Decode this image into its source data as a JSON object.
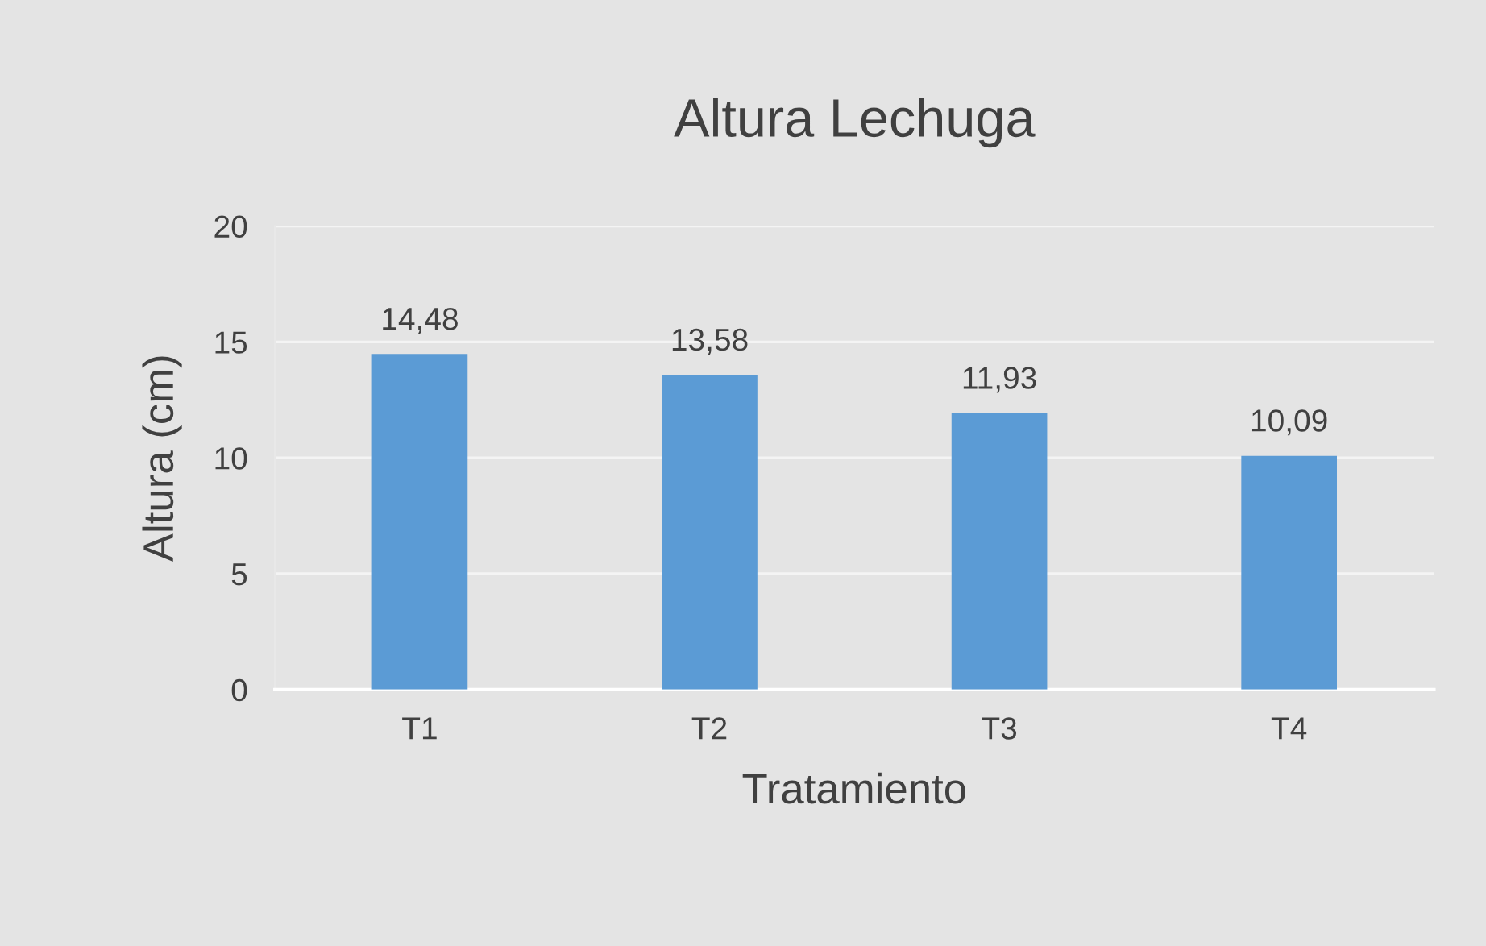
{
  "chart_data": {
    "type": "bar",
    "title": "Altura Lechuga",
    "xlabel": "Tratamiento",
    "ylabel": "Altura (cm)",
    "categories": [
      "T1",
      "T2",
      "T3",
      "T4"
    ],
    "values": [
      14.48,
      13.58,
      11.93,
      10.09
    ],
    "value_labels": [
      "14,48",
      "13,58",
      "11,93",
      "10,09"
    ],
    "color": "#5b9bd5",
    "ylim": [
      0,
      20
    ],
    "yticks": [
      0,
      5,
      10,
      15,
      20
    ],
    "grid": "y",
    "legend": false
  }
}
